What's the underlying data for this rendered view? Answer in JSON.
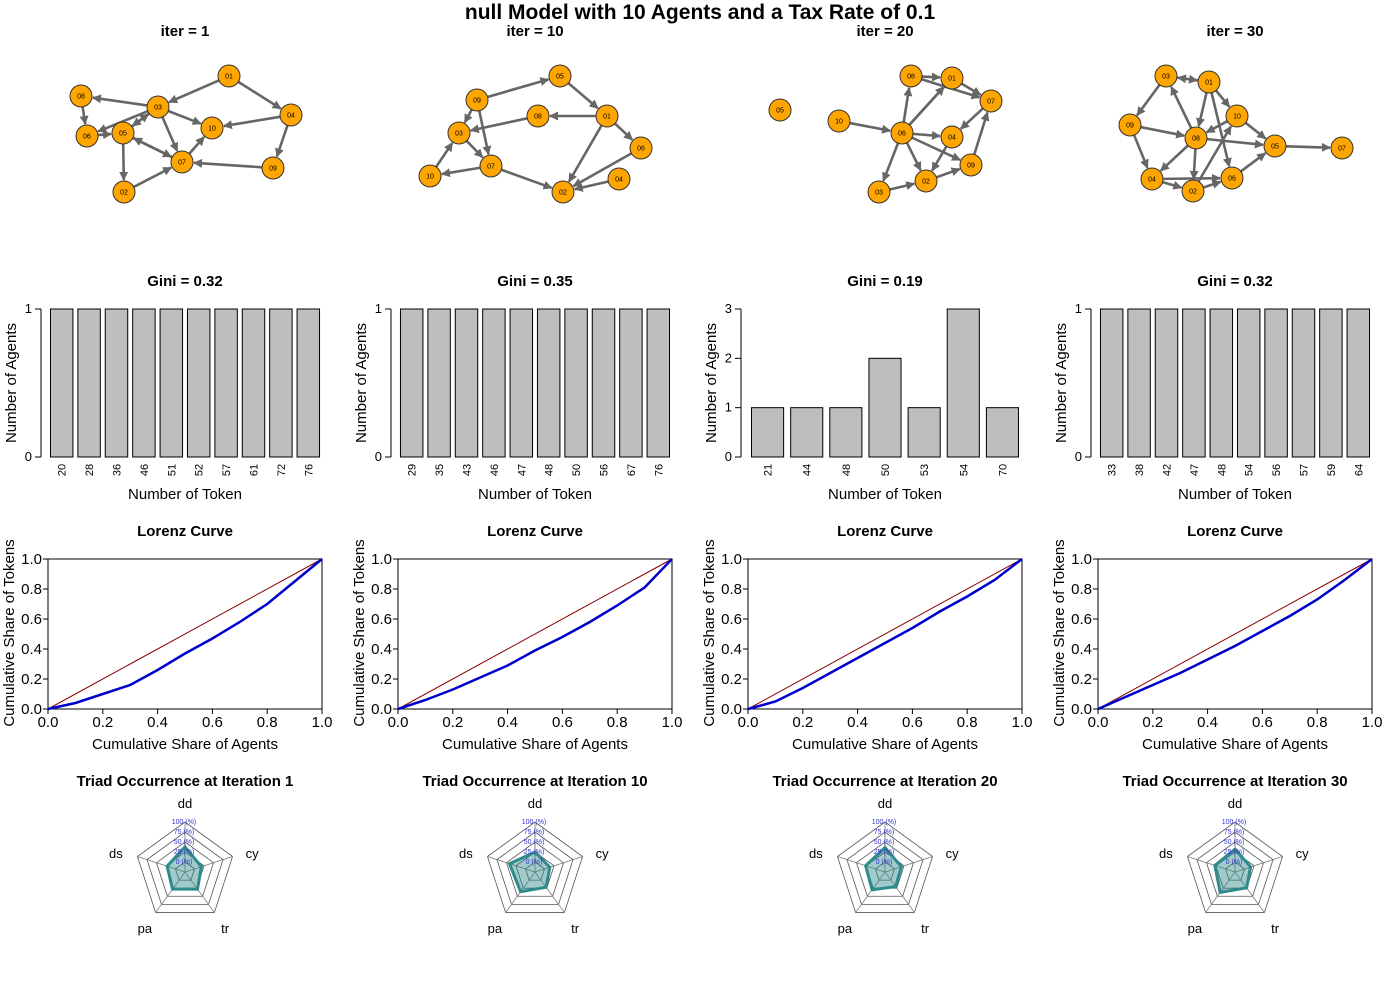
{
  "figure_title": "null  Model with  10  Agents and a Tax Rate of  0.1",
  "colors": {
    "node_fill": "#FFA500",
    "edge": "#666666",
    "bar_fill": "#BEBEBE",
    "lorenz_curve": "#0000CD",
    "equality_line": "#8B0000",
    "radar_fill": "#2E8B8B",
    "radar_axis_label": "#3333CC"
  },
  "chart_data": [
    {
      "type": "network",
      "panel": 1,
      "title": "iter = 1",
      "nodes": [
        "01",
        "02",
        "03",
        "04",
        "05",
        "06",
        "07",
        "08",
        "09",
        "10"
      ],
      "edges": [
        [
          "03",
          "08"
        ],
        [
          "03",
          "06"
        ],
        [
          "03",
          "05"
        ],
        [
          "03",
          "07"
        ],
        [
          "03",
          "10"
        ],
        [
          "05",
          "03"
        ],
        [
          "05",
          "02"
        ],
        [
          "05",
          "07"
        ],
        [
          "06",
          "05"
        ],
        [
          "08",
          "06"
        ],
        [
          "07",
          "05"
        ],
        [
          "07",
          "10"
        ],
        [
          "09",
          "07"
        ],
        [
          "02",
          "07"
        ],
        [
          "01",
          "03"
        ],
        [
          "01",
          "04"
        ],
        [
          "04",
          "10"
        ],
        [
          "04",
          "09"
        ]
      ]
    },
    {
      "type": "network",
      "panel": 2,
      "title": "iter = 10",
      "nodes": [
        "01",
        "02",
        "03",
        "04",
        "05",
        "06",
        "07",
        "08",
        "09",
        "10"
      ],
      "edges": [
        [
          "09",
          "05"
        ],
        [
          "05",
          "01"
        ],
        [
          "01",
          "08"
        ],
        [
          "08",
          "03"
        ],
        [
          "09",
          "03"
        ],
        [
          "09",
          "07"
        ],
        [
          "03",
          "07"
        ],
        [
          "10",
          "03"
        ],
        [
          "07",
          "10"
        ],
        [
          "07",
          "02"
        ],
        [
          "01",
          "02"
        ],
        [
          "01",
          "06"
        ],
        [
          "06",
          "02"
        ],
        [
          "04",
          "02"
        ]
      ]
    },
    {
      "type": "network",
      "panel": 3,
      "title": "iter = 20",
      "nodes": [
        "01",
        "02",
        "03",
        "04",
        "05",
        "06",
        "07",
        "08",
        "09",
        "10"
      ],
      "edges": [
        [
          "10",
          "06"
        ],
        [
          "06",
          "08"
        ],
        [
          "06",
          "01"
        ],
        [
          "08",
          "01"
        ],
        [
          "01",
          "07"
        ],
        [
          "08",
          "07"
        ],
        [
          "06",
          "04"
        ],
        [
          "07",
          "04"
        ],
        [
          "06",
          "09"
        ],
        [
          "04",
          "02"
        ],
        [
          "06",
          "02"
        ],
        [
          "06",
          "03"
        ],
        [
          "03",
          "02"
        ],
        [
          "02",
          "09"
        ],
        [
          "09",
          "07"
        ],
        [
          "06",
          "01"
        ]
      ]
    },
    {
      "type": "network",
      "panel": 4,
      "title": "iter = 30",
      "nodes": [
        "01",
        "02",
        "03",
        "04",
        "05",
        "06",
        "07",
        "08",
        "09",
        "10"
      ],
      "edges": [
        [
          "03",
          "01"
        ],
        [
          "01",
          "03"
        ],
        [
          "03",
          "09"
        ],
        [
          "09",
          "08"
        ],
        [
          "09",
          "04"
        ],
        [
          "08",
          "03"
        ],
        [
          "01",
          "08"
        ],
        [
          "01",
          "10"
        ],
        [
          "10",
          "08"
        ],
        [
          "10",
          "05"
        ],
        [
          "08",
          "05"
        ],
        [
          "06",
          "05"
        ],
        [
          "05",
          "07"
        ],
        [
          "01",
          "06"
        ],
        [
          "08",
          "02"
        ],
        [
          "04",
          "02"
        ],
        [
          "02",
          "06"
        ],
        [
          "04",
          "06"
        ],
        [
          "08",
          "04"
        ],
        [
          "02",
          "10"
        ]
      ]
    },
    {
      "type": "bar",
      "panel": 5,
      "title": "Gini = 0.32",
      "xlabel": "Number of Token",
      "ylabel": "Number of Agents",
      "ylim": [
        0,
        1
      ],
      "yticks": [
        0,
        1
      ],
      "categories": [
        "20",
        "28",
        "36",
        "46",
        "51",
        "52",
        "57",
        "61",
        "72",
        "76"
      ],
      "values": [
        1,
        1,
        1,
        1,
        1,
        1,
        1,
        1,
        1,
        1
      ]
    },
    {
      "type": "bar",
      "panel": 6,
      "title": "Gini = 0.35",
      "xlabel": "Number of Token",
      "ylabel": "Number of Agents",
      "ylim": [
        0,
        1
      ],
      "yticks": [
        0,
        1
      ],
      "categories": [
        "29",
        "35",
        "43",
        "46",
        "47",
        "48",
        "50",
        "56",
        "67",
        "76"
      ],
      "values": [
        1,
        1,
        1,
        1,
        1,
        1,
        1,
        1,
        1,
        1
      ]
    },
    {
      "type": "bar",
      "panel": 7,
      "title": "Gini = 0.19",
      "xlabel": "Number of Token",
      "ylabel": "Number of Agents",
      "ylim": [
        0,
        3
      ],
      "yticks": [
        0,
        1,
        2,
        3
      ],
      "categories": [
        "21",
        "44",
        "48",
        "50",
        "53",
        "54",
        "70"
      ],
      "values": [
        1,
        1,
        1,
        2,
        1,
        3,
        1
      ]
    },
    {
      "type": "bar",
      "panel": 8,
      "title": "Gini = 0.32",
      "xlabel": "Number of Token",
      "ylabel": "Number of Agents",
      "ylim": [
        0,
        1
      ],
      "yticks": [
        0,
        1
      ],
      "categories": [
        "33",
        "38",
        "42",
        "47",
        "48",
        "54",
        "56",
        "57",
        "59",
        "64"
      ],
      "values": [
        1,
        1,
        1,
        1,
        1,
        1,
        1,
        1,
        1,
        1
      ]
    },
    {
      "type": "line",
      "panel": 9,
      "title": "Lorenz Curve",
      "xlabel": "Cumulative Share of Agents",
      "ylabel": "Cumulative Share of Tokens",
      "xlim": [
        0,
        1
      ],
      "ylim": [
        0,
        1
      ],
      "ticks": [
        "0.0",
        "0.2",
        "0.4",
        "0.6",
        "0.8",
        "1.0"
      ],
      "x": [
        0,
        0.1,
        0.2,
        0.3,
        0.4,
        0.5,
        0.6,
        0.7,
        0.8,
        0.9,
        1.0
      ],
      "y": [
        0,
        0.04,
        0.1,
        0.16,
        0.26,
        0.37,
        0.47,
        0.58,
        0.7,
        0.85,
        1.0
      ]
    },
    {
      "type": "line",
      "panel": 10,
      "title": "Lorenz Curve",
      "xlabel": "Cumulative Share of Agents",
      "ylabel": "Cumulative Share of Tokens",
      "xlim": [
        0,
        1
      ],
      "ylim": [
        0,
        1
      ],
      "ticks": [
        "0.0",
        "0.2",
        "0.4",
        "0.6",
        "0.8",
        "1.0"
      ],
      "x": [
        0,
        0.1,
        0.2,
        0.3,
        0.4,
        0.5,
        0.6,
        0.7,
        0.8,
        0.9,
        1.0
      ],
      "y": [
        0,
        0.06,
        0.13,
        0.21,
        0.29,
        0.39,
        0.48,
        0.58,
        0.69,
        0.81,
        1.0
      ]
    },
    {
      "type": "line",
      "panel": 11,
      "title": "Lorenz Curve",
      "xlabel": "Cumulative Share of Agents",
      "ylabel": "Cumulative Share of Tokens",
      "xlim": [
        0,
        1
      ],
      "ylim": [
        0,
        1
      ],
      "ticks": [
        "0.0",
        "0.2",
        "0.4",
        "0.6",
        "0.8",
        "1.0"
      ],
      "x": [
        0,
        0.1,
        0.2,
        0.3,
        0.4,
        0.5,
        0.6,
        0.7,
        0.8,
        0.9,
        1.0
      ],
      "y": [
        0,
        0.05,
        0.14,
        0.24,
        0.34,
        0.44,
        0.54,
        0.65,
        0.75,
        0.86,
        1.0
      ]
    },
    {
      "type": "line",
      "panel": 12,
      "title": "Lorenz Curve",
      "xlabel": "Cumulative Share of Agents",
      "ylabel": "Cumulative Share of Tokens",
      "xlim": [
        0,
        1
      ],
      "ylim": [
        0,
        1
      ],
      "ticks": [
        "0.0",
        "0.2",
        "0.4",
        "0.6",
        "0.8",
        "1.0"
      ],
      "x": [
        0,
        0.1,
        0.2,
        0.3,
        0.4,
        0.5,
        0.6,
        0.7,
        0.8,
        0.9,
        1.0
      ],
      "y": [
        0,
        0.08,
        0.16,
        0.24,
        0.33,
        0.42,
        0.52,
        0.62,
        0.73,
        0.86,
        1.0
      ]
    },
    {
      "type": "radar",
      "panel": 13,
      "title": "Triad Occurrence at Iteration  1",
      "axes": [
        "dd",
        "cy",
        "tr",
        "pa",
        "ds"
      ],
      "rings": [
        "0 (%)",
        "25 (%)",
        "50 (%)",
        "75 (%)",
        "100 (%)"
      ],
      "values": [
        38,
        18,
        28,
        28,
        22
      ]
    },
    {
      "type": "radar",
      "panel": 14,
      "title": "Triad Occurrence at Iteration  10",
      "axes": [
        "dd",
        "cy",
        "tr",
        "pa",
        "ds"
      ],
      "rings": [
        "0 (%)",
        "25 (%)",
        "50 (%)",
        "75 (%)",
        "100 (%)"
      ],
      "values": [
        25,
        14,
        22,
        36,
        42
      ]
    },
    {
      "type": "radar",
      "panel": 15,
      "title": "Triad Occurrence at Iteration  20",
      "axes": [
        "dd",
        "cy",
        "tr",
        "pa",
        "ds"
      ],
      "rings": [
        "0 (%)",
        "25 (%)",
        "50 (%)",
        "75 (%)",
        "100 (%)"
      ],
      "values": [
        36,
        18,
        20,
        30,
        26
      ]
    },
    {
      "type": "radar",
      "panel": 16,
      "title": "Triad Occurrence at Iteration  30",
      "axes": [
        "dd",
        "cy",
        "tr",
        "pa",
        "ds"
      ],
      "rings": [
        "0 (%)",
        "25 (%)",
        "50 (%)",
        "75 (%)",
        "100 (%)"
      ],
      "values": [
        32,
        16,
        24,
        38,
        28
      ]
    }
  ]
}
